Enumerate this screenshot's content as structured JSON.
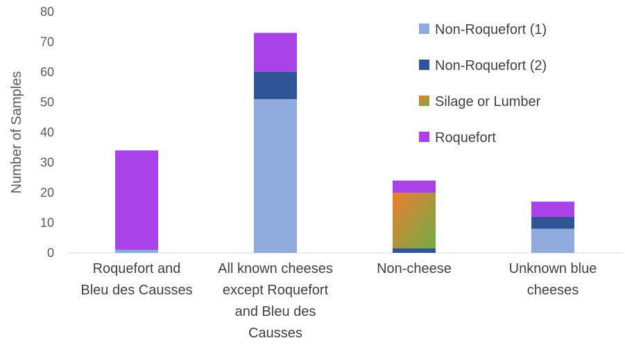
{
  "chart_data": {
    "type": "bar",
    "stacked": true,
    "ylabel": "Number of Samples",
    "xlabel": "",
    "ylim": [
      0,
      80
    ],
    "yticks": [
      0,
      10,
      20,
      30,
      40,
      50,
      60,
      70,
      80
    ],
    "grid": false,
    "legend_position": "top-right",
    "categories": [
      [
        "Roquefort and",
        "Bleu des Causses"
      ],
      [
        "All known cheeses",
        "except Roquefort",
        "and Bleu des",
        "Causses"
      ],
      [
        "Non-cheese"
      ],
      [
        "Unknown blue",
        "cheeses"
      ]
    ],
    "series": [
      {
        "name": "Non-Roquefort (1)",
        "values": [
          1,
          51,
          0,
          8
        ],
        "color": "#8faadc"
      },
      {
        "name": "Non-Roquefort (2)",
        "values": [
          0,
          9,
          1.5,
          4
        ],
        "color": "#2f5597"
      },
      {
        "name": "Silage or Lumber",
        "values": [
          0,
          0,
          18.5,
          0
        ],
        "color": "#a9a33a",
        "gradient": [
          "#ed7d31",
          "#70ad47"
        ]
      },
      {
        "name": "Roquefort",
        "values": [
          33,
          13,
          4,
          5
        ],
        "color": "#a743e8"
      }
    ]
  }
}
